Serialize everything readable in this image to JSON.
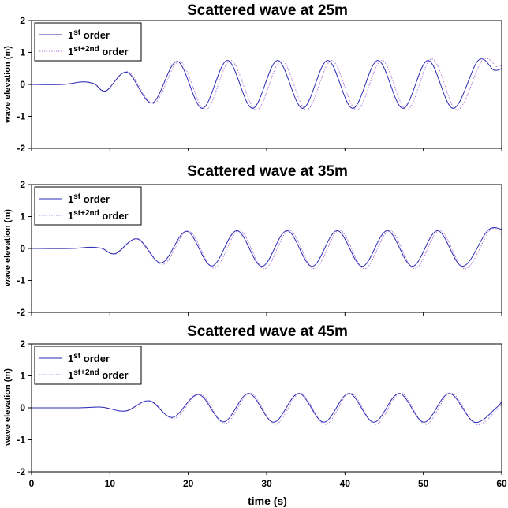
{
  "figure": {
    "xlabel": "time (s)"
  },
  "legend": {
    "first": {
      "base": "1",
      "sup": "st",
      "tail": " order"
    },
    "second": {
      "base": "1",
      "sup": "st",
      "mid": "+2",
      "sup2": "nd",
      "tail": " order"
    }
  },
  "colors": {
    "first_order": "#2b2bb5",
    "second_order": "#b07ad6",
    "axes": "#000000"
  },
  "chart_data": [
    {
      "type": "line",
      "title": "Scattered wave at 25m",
      "xlabel": "",
      "ylabel": "wave elevation (m)",
      "xlim": [
        0,
        60
      ],
      "ylim": [
        -2,
        2
      ],
      "yticks": [
        -2,
        -1,
        0,
        1,
        2
      ],
      "xticks": [
        0,
        10,
        20,
        30,
        40,
        50,
        60
      ],
      "show_xtick_labels": false,
      "grid": false,
      "legend_position": "top-left",
      "series": [
        {
          "name": "1st order",
          "x": [
            0,
            4,
            6.5,
            8,
            9.5,
            12.2,
            15.4,
            18.6,
            21.8,
            25,
            28.2,
            31.4,
            34.6,
            37.8,
            41,
            44.2,
            47.4,
            50.6,
            53.8,
            57,
            59,
            60
          ],
          "y": [
            0,
            0,
            0.08,
            0.02,
            -0.2,
            0.38,
            -0.58,
            0.72,
            -0.75,
            0.75,
            -0.75,
            0.75,
            -0.75,
            0.75,
            -0.75,
            0.75,
            -0.75,
            0.75,
            -0.75,
            0.75,
            0.45,
            0.5
          ]
        },
        {
          "name": "1st+2nd order",
          "x": [
            0,
            4,
            6.5,
            8,
            9.5,
            12.3,
            15.6,
            18.9,
            22.2,
            25.4,
            28.7,
            31.9,
            35.1,
            38.3,
            41.5,
            44.7,
            47.9,
            51.1,
            54.3,
            57.5,
            59.4,
            60
          ],
          "y": [
            0,
            0,
            0.08,
            0.02,
            -0.2,
            0.4,
            -0.6,
            0.72,
            -0.8,
            0.75,
            -0.8,
            0.75,
            -0.8,
            0.75,
            -0.8,
            0.75,
            -0.8,
            0.8,
            -0.8,
            0.75,
            0.55,
            0.6
          ]
        }
      ]
    },
    {
      "type": "line",
      "title": "Scattered wave at 35m",
      "xlabel": "",
      "ylabel": "wave elevation (m)",
      "xlim": [
        0,
        60
      ],
      "ylim": [
        -2,
        2
      ],
      "yticks": [
        -2,
        -1,
        0,
        1,
        2
      ],
      "xticks": [
        0,
        10,
        20,
        30,
        40,
        50,
        60
      ],
      "show_xtick_labels": false,
      "grid": false,
      "legend_position": "top-left",
      "series": [
        {
          "name": "1st order",
          "x": [
            0,
            5,
            7.5,
            9,
            10.7,
            13.5,
            16.6,
            19.8,
            23,
            26.2,
            29.4,
            32.6,
            35.8,
            39,
            42.2,
            45.4,
            48.6,
            51.8,
            55,
            58.2,
            60
          ],
          "y": [
            0,
            0,
            0.04,
            0.0,
            -0.16,
            0.3,
            -0.45,
            0.54,
            -0.55,
            0.56,
            -0.56,
            0.56,
            -0.56,
            0.56,
            -0.56,
            0.56,
            -0.56,
            0.56,
            -0.56,
            0.56,
            0.6
          ]
        },
        {
          "name": "1st+2nd order",
          "x": [
            0,
            5,
            7.5,
            9,
            10.8,
            13.6,
            16.8,
            20,
            23.3,
            26.5,
            29.7,
            32.9,
            36.1,
            39.3,
            42.5,
            45.7,
            48.9,
            52.1,
            55.3,
            58.5,
            60
          ],
          "y": [
            0,
            0,
            0.04,
            0.0,
            -0.17,
            0.31,
            -0.5,
            0.55,
            -0.62,
            0.57,
            -0.64,
            0.57,
            -0.64,
            0.57,
            -0.64,
            0.57,
            -0.64,
            0.57,
            -0.64,
            0.57,
            0.45
          ]
        }
      ]
    },
    {
      "type": "line",
      "title": "Scattered wave at 45m",
      "xlabel": "time (s)",
      "ylabel": "wave elevation (m)",
      "xlim": [
        0,
        60
      ],
      "ylim": [
        -2,
        2
      ],
      "yticks": [
        -2,
        -1,
        0,
        1,
        2
      ],
      "xticks": [
        0,
        10,
        20,
        30,
        40,
        50,
        60
      ],
      "show_xtick_labels": true,
      "grid": false,
      "legend_position": "top-left",
      "series": [
        {
          "name": "1st order",
          "x": [
            0,
            6,
            9,
            12,
            15,
            18,
            21.3,
            24.5,
            27.7,
            30.9,
            34.1,
            37.3,
            40.5,
            43.7,
            46.9,
            50.1,
            53.3,
            56.5,
            59.3,
            60
          ],
          "y": [
            0,
            0,
            0.02,
            -0.1,
            0.22,
            -0.3,
            0.42,
            -0.44,
            0.45,
            -0.45,
            0.45,
            -0.45,
            0.45,
            -0.45,
            0.45,
            -0.45,
            0.45,
            -0.45,
            0.0,
            0.2
          ]
        },
        {
          "name": "1st+2nd order",
          "x": [
            0,
            6,
            9,
            12,
            15.1,
            18.2,
            21.5,
            24.7,
            27.9,
            31.1,
            34.3,
            37.5,
            40.7,
            43.9,
            47.1,
            50.3,
            53.5,
            56.7,
            59.4,
            60
          ],
          "y": [
            0,
            0,
            0.02,
            -0.1,
            0.22,
            -0.33,
            0.43,
            -0.5,
            0.46,
            -0.52,
            0.46,
            -0.52,
            0.46,
            -0.52,
            0.46,
            -0.52,
            0.46,
            -0.52,
            -0.05,
            0.15
          ]
        }
      ]
    }
  ]
}
